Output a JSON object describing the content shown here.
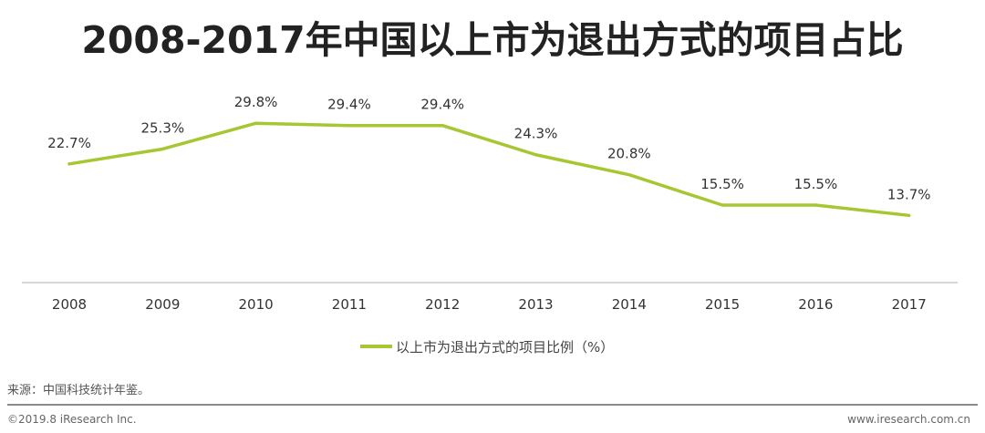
{
  "title": "2008-2017年中国以上市为退出方式的项目占比",
  "chart_data": {
    "type": "line",
    "title": "2008-2017年中国以上市为退出方式的项目占比",
    "categories": [
      "2008",
      "2009",
      "2010",
      "2011",
      "2012",
      "2013",
      "2014",
      "2015",
      "2016",
      "2017"
    ],
    "series": [
      {
        "name": "以上市为退出方式的项目比例（%）",
        "values": [
          22.7,
          25.3,
          29.8,
          29.4,
          29.4,
          24.3,
          20.8,
          15.5,
          15.5,
          13.7
        ],
        "labels": [
          "22.7%",
          "25.3%",
          "29.8%",
          "29.4%",
          "29.4%",
          "24.3%",
          "20.8%",
          "15.5%",
          "15.5%",
          "13.7%"
        ]
      }
    ],
    "colors": {
      "line": "#a6c732",
      "axis": "#bfbfbf"
    },
    "legend_position": "bottom",
    "grid": false
  },
  "footer": {
    "source": "来源：中国科技统计年鉴。",
    "copyright": "©2019.8 iResearch Inc.",
    "website": "www.iresearch.com.cn"
  }
}
